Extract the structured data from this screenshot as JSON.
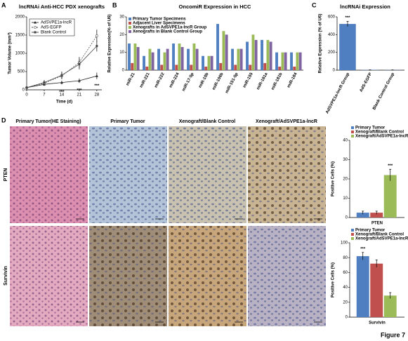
{
  "figure": {
    "letters": [
      "A",
      "B",
      "C",
      "D"
    ],
    "columns": [
      "Primary Tumor(HE Staining)",
      "Primary Tumor",
      "Xenograft/Blank Control",
      "Xenograft/AdSVPE1a-lncR"
    ],
    "rows": [
      "PTEN",
      "Survivin"
    ],
    "label": "Figure 7"
  },
  "chart_data": [
    {
      "type": "line",
      "title": "lncRNAi Anti-HCC PDX xenografts",
      "xlabel": "Time (d)",
      "ylabel": "Tumor Volume (mm³)",
      "x": [
        0,
        7,
        14,
        21,
        28
      ],
      "xlim": [
        0,
        30
      ],
      "xticks": [
        0,
        7,
        14,
        21,
        28
      ],
      "ylim": [
        0,
        2000
      ],
      "yticks": [
        0,
        500,
        1000,
        1500,
        2000
      ],
      "series": [
        {
          "name": "AdSVPE1a-lncR",
          "color": "#222222",
          "marker": "triangle",
          "linestyle": "solid",
          "values": [
            60,
            150,
            200,
            250,
            380
          ],
          "errors": [
            20,
            40,
            50,
            60,
            90
          ]
        },
        {
          "name": "AdS-EGFP",
          "color": "#555555",
          "marker": "circle",
          "linestyle": "dashed",
          "values": [
            60,
            180,
            380,
            750,
            1480
          ],
          "errors": [
            20,
            60,
            90,
            150,
            170
          ]
        },
        {
          "name": "Blank Control",
          "color": "#444444",
          "marker": "square",
          "linestyle": "solid",
          "values": [
            60,
            200,
            400,
            700,
            1200
          ],
          "errors": [
            20,
            70,
            100,
            140,
            150
          ]
        }
      ],
      "annotations": [
        {
          "x": 14,
          "text": "***"
        },
        {
          "x": 21,
          "text": "***"
        },
        {
          "x": 28,
          "text": "***"
        }
      ]
    },
    {
      "type": "bar",
      "title": "OncomiR Expression in HCC",
      "ylabel": "Relative Expression(% of U6)",
      "categories": [
        "miR-21",
        "miR-221",
        "miR-222",
        "miR-224",
        "miR-17-5p",
        "miR-10b",
        "miR-106b",
        "miR-151-5p",
        "miR-155",
        "miR-181a",
        "miR-181b",
        "miR-184"
      ],
      "ylim": [
        0,
        30
      ],
      "yticks": [
        0,
        10,
        20,
        30
      ],
      "legend": "upper left",
      "series": [
        {
          "name": "Primary Tumor Specimens",
          "color": "#4f7fc0",
          "values": [
            15,
            8,
            12,
            15,
            12,
            8,
            26,
            12,
            16,
            17,
            10,
            10
          ]
        },
        {
          "name": "Adjacent Liver Specimens",
          "color": "#c0504d",
          "values": [
            4,
            2,
            3,
            3,
            3,
            2,
            4,
            3,
            3,
            4,
            2,
            2
          ]
        },
        {
          "name": "Xenografts in AdSVPE1a-lncR Group",
          "color": "#9bbb59",
          "values": [
            15,
            12,
            10,
            15,
            15,
            8,
            22,
            12,
            20,
            17,
            10,
            10
          ]
        },
        {
          "name": "Xenografts in Blank Control Group",
          "color": "#8064a2",
          "values": [
            13,
            10,
            12,
            13,
            12,
            8,
            20,
            12,
            17,
            16,
            10,
            10
          ]
        }
      ]
    },
    {
      "type": "bar",
      "title": "lncRNAi Expression",
      "ylabel": "Relative Expression (% of U6)",
      "categories": [
        "AdSVPE1a-lncR Group",
        "AdS-EGFP",
        "Blank Control Group"
      ],
      "ylim": [
        0,
        600
      ],
      "yticks": [
        0,
        200,
        400,
        600
      ],
      "color": "#4f7fc0",
      "values": [
        520,
        3,
        2
      ],
      "errors": [
        30,
        1,
        1
      ],
      "annotation": "***"
    },
    {
      "type": "bar",
      "ylabel": "Positive Cells (%)",
      "categories": [
        "PTEN"
      ],
      "ylim": [
        0,
        40
      ],
      "yticks": [
        0,
        10,
        20,
        30,
        40
      ],
      "legend": "top",
      "annotation": "***",
      "series": [
        {
          "name": "Primary Tumor",
          "color": "#4f7fc0",
          "values": [
            2.5
          ],
          "errors": [
            0.8
          ]
        },
        {
          "name": "Xenograft/Blank Control",
          "color": "#c0504d",
          "values": [
            2.5
          ],
          "errors": [
            0.8
          ]
        },
        {
          "name": "Xenograft/AdSVPE1a-lncR",
          "color": "#9bbb59",
          "values": [
            22
          ],
          "errors": [
            3
          ]
        }
      ]
    },
    {
      "type": "bar",
      "ylabel": "Positive Cells (%)",
      "categories": [
        "Survivin"
      ],
      "ylim": [
        0,
        100
      ],
      "yticks": [
        0,
        20,
        40,
        60,
        80,
        100
      ],
      "legend": "top",
      "annotation": "***",
      "series": [
        {
          "name": "Primary Tumor",
          "color": "#4f7fc0",
          "values": [
            82
          ],
          "errors": [
            5
          ]
        },
        {
          "name": "Xenograft/Blank Control",
          "color": "#c0504d",
          "values": [
            72
          ],
          "errors": [
            5
          ]
        },
        {
          "name": "Xenograft/AdSVPE1a-lncR",
          "color": "#9bbb59",
          "values": [
            29
          ],
          "errors": [
            4
          ]
        }
      ]
    }
  ]
}
